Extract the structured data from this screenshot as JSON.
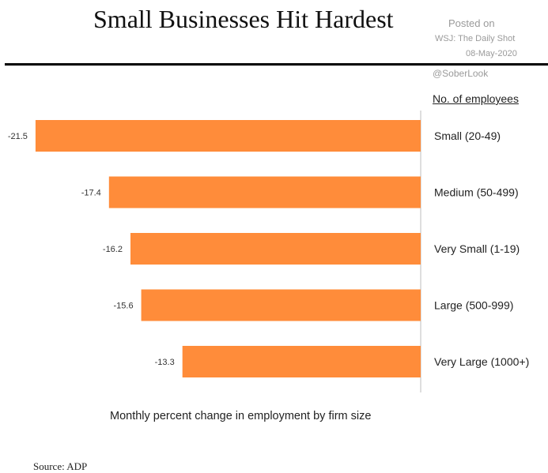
{
  "title": "Small Businesses Hit Hardest",
  "watermark": {
    "line1": "Posted on",
    "line2": "WSJ: The Daily Shot",
    "line3": "08-May-2020",
    "line4": "@SoberLook"
  },
  "legend_title": "No. of employees",
  "caption": "Monthly percent change in employment by firm size",
  "source": "Source: ADP",
  "colors": {
    "bar": "#ff8c3a"
  },
  "chart_data": {
    "type": "bar",
    "orientation": "horizontal",
    "categories": [
      "Small (20-49)",
      "Medium (50-499)",
      "Very Small (1-19)",
      "Large (500-999)",
      "Very Large (1000+)"
    ],
    "values": [
      -21.5,
      -17.4,
      -16.2,
      -15.6,
      -13.3
    ],
    "value_labels": [
      "-21.5",
      "-17.4",
      "-16.2",
      "-15.6",
      "-13.3"
    ],
    "xlim": [
      -22.6,
      0
    ],
    "grid": false
  }
}
